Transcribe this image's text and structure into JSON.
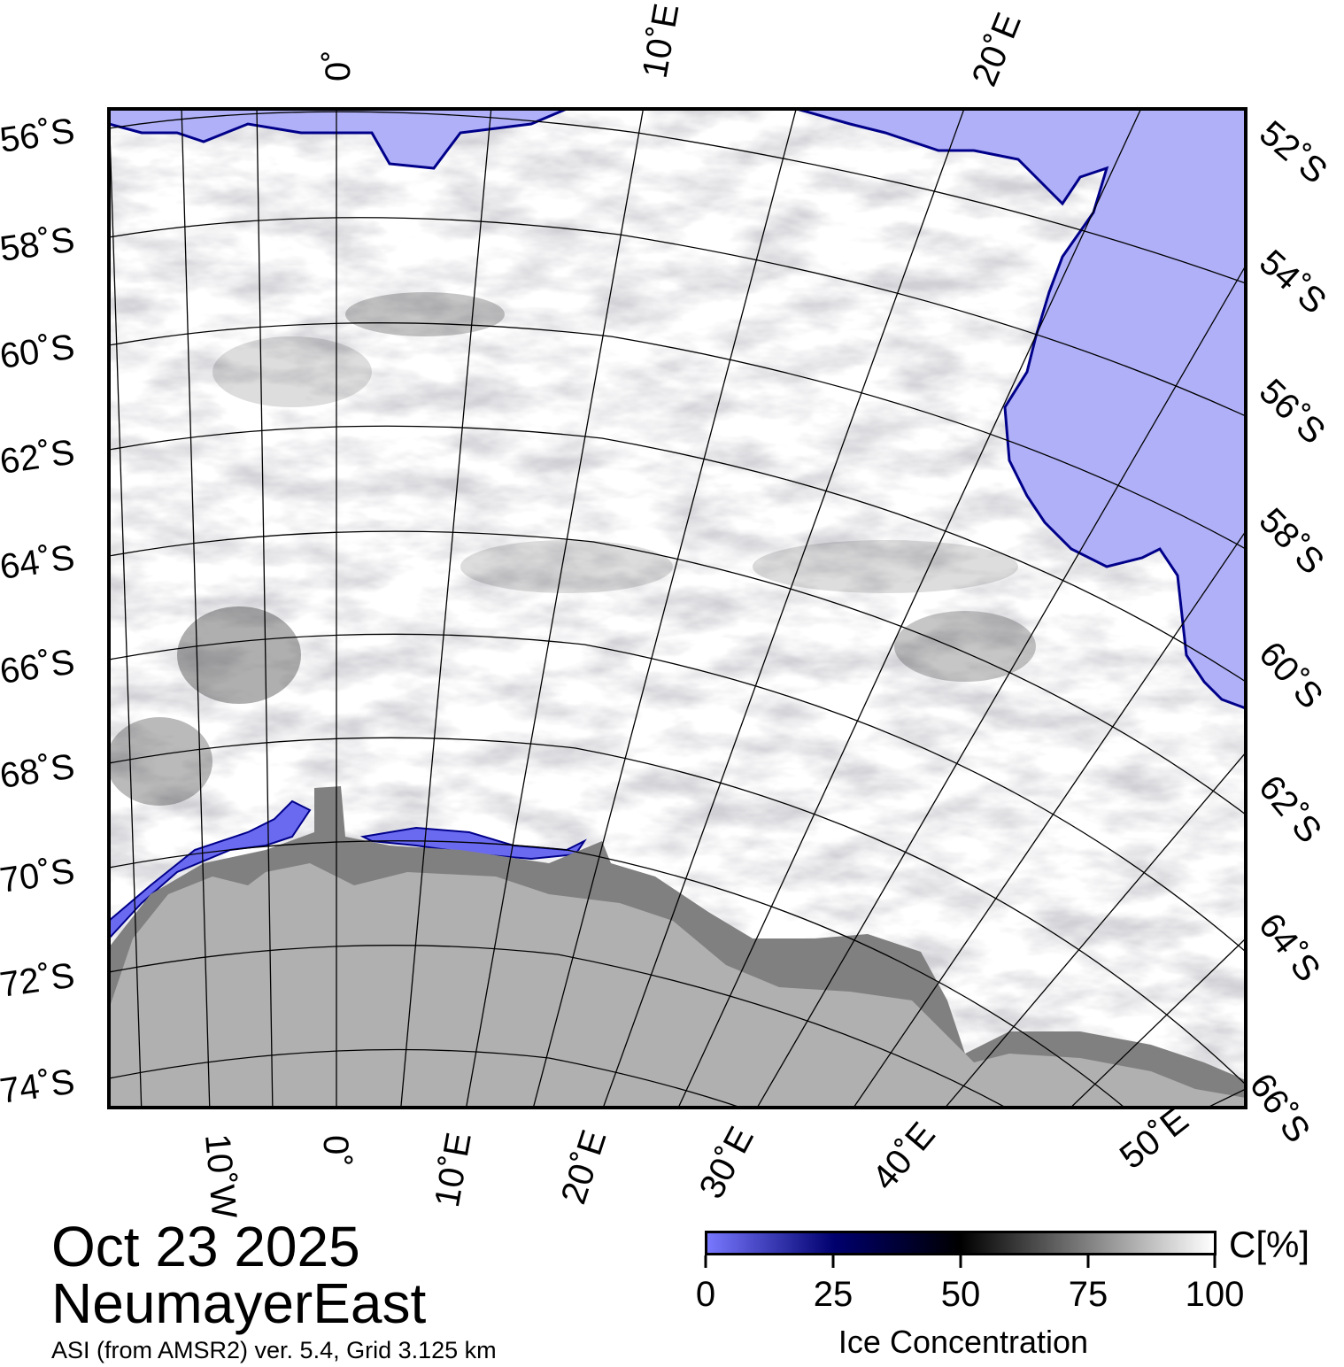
{
  "map": {
    "date": "Oct 23 2025",
    "region": "NeumayerEast",
    "source": "ASI (from AMSR2) ver. 5.4,  Grid 3.125 km",
    "colors": {
      "open_water": "#b0b0f8",
      "land_high": "#b0b0b0",
      "ice_shelf": "#808080",
      "ice": "#ffffff",
      "frame": "#000000"
    },
    "left_lat_labels": [
      "56˚S",
      "58˚S",
      "60˚S",
      "62˚S",
      "64˚S",
      "66˚S",
      "68˚S",
      "70˚S",
      "72˚S",
      "74˚S"
    ],
    "right_lat_labels": [
      "52˚S",
      "54˚S",
      "56˚S",
      "58˚S",
      "60˚S",
      "62˚S",
      "64˚S",
      "66˚S"
    ],
    "top_lon_labels": [
      "0˚",
      "10˚E",
      "20˚E"
    ],
    "bottom_lon_labels": [
      "10˚W",
      "0˚",
      "10˚E",
      "20˚E",
      "30˚E",
      "40˚E",
      "50˚E"
    ]
  },
  "colorbar": {
    "title": "Ice Concentration",
    "unit": "C[%]",
    "ticks": [
      "0",
      "25",
      "50",
      "75",
      "100"
    ],
    "gradient": [
      "#7878ff",
      "#00006e",
      "#000000",
      "#ffffff"
    ]
  }
}
